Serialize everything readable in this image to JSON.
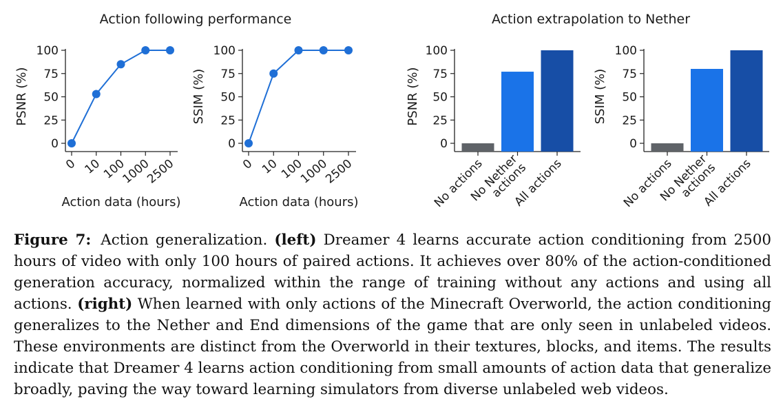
{
  "figure": {
    "group_titles": {
      "left": "Action following performance",
      "right": "Action extrapolation to Nether"
    }
  },
  "chart_data": [
    {
      "type": "line",
      "x": [
        "0",
        "10",
        "100",
        "1000",
        "2500"
      ],
      "values": [
        0,
        53,
        85,
        100,
        100
      ],
      "xlabel": "Action data (hours)",
      "ylabel": "PSNR (%)",
      "ylim": [
        0,
        100
      ],
      "yticks": [
        "0",
        "25",
        "50",
        "75",
        "100"
      ],
      "color": "#1f6fd6"
    },
    {
      "type": "line",
      "x": [
        "0",
        "10",
        "100",
        "1000",
        "2500"
      ],
      "values": [
        0,
        75,
        100,
        100,
        100
      ],
      "xlabel": "Action data (hours)",
      "ylabel": "SSIM (%)",
      "ylim": [
        0,
        100
      ],
      "yticks": [
        "0",
        "25",
        "50",
        "75",
        "100"
      ],
      "color": "#1f6fd6"
    },
    {
      "type": "bar",
      "categories": [
        "No actions",
        "No Nether actions",
        "All actions"
      ],
      "values": [
        0,
        77,
        100
      ],
      "colors": [
        "#5f6368",
        "#1a73e8",
        "#174ea6"
      ],
      "ylabel": "PSNR (%)",
      "ylim": [
        0,
        100
      ],
      "yticks": [
        "0",
        "25",
        "50",
        "75",
        "100"
      ]
    },
    {
      "type": "bar",
      "categories": [
        "No actions",
        "No Nether actions",
        "All actions"
      ],
      "values": [
        0,
        80,
        100
      ],
      "colors": [
        "#5f6368",
        "#1a73e8",
        "#174ea6"
      ],
      "ylabel": "SSIM (%)",
      "ylim": [
        0,
        100
      ],
      "yticks": [
        "0",
        "25",
        "50",
        "75",
        "100"
      ]
    }
  ],
  "caption": {
    "label": "Figure 7:",
    "intro": "Action generalization.",
    "left_tag": "(left)",
    "left_text": "Dreamer 4 learns accurate action conditioning from 2500 hours of video with only 100 hours of paired actions. It achieves over 80% of the action-conditioned generation accuracy, normalized within the range of training without any actions and using all actions.",
    "right_tag": "(right)",
    "right_text": "When learned with only actions of the Minecraft Overworld, the action conditioning generalizes to the Nether and End dimensions of the game that are only seen in unlabeled videos. These environments are distinct from the Overworld in their textures, blocks, and items. The results indicate that Dreamer 4 learns action conditioning from small amounts of action data that generalize broadly, paving the way toward learning simulators from diverse unlabeled web videos."
  }
}
